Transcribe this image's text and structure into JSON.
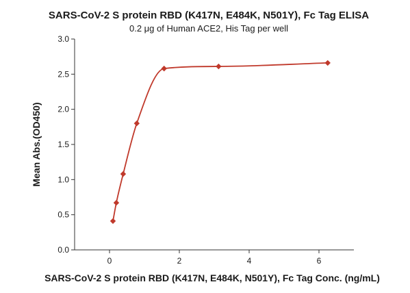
{
  "chart_data": {
    "type": "scatter",
    "title": "SARS-CoV-2 S protein RBD (K417N, E484K, N501Y), Fc Tag ELISA",
    "subtitle": "0.2 μg of Human ACE2, His Tag per well",
    "xlabel": "SARS-CoV-2 S protein RBD (K417N, E484K, N501Y), Fc Tag Conc. (ng/mL)",
    "ylabel": "Mean Abs.(OD450)",
    "xlim": [
      -1,
      7
    ],
    "ylim": [
      0,
      3
    ],
    "x_ticks": [
      0,
      2,
      4,
      6
    ],
    "y_ticks": [
      0.0,
      0.5,
      1.0,
      1.5,
      2.0,
      2.5,
      3.0
    ],
    "x_tick_labels": [
      "0",
      "2",
      "4",
      "6"
    ],
    "y_tick_labels": [
      "0.0",
      "0.5",
      "1.0",
      "1.5",
      "2.0",
      "2.5",
      "3.0"
    ],
    "grid": false,
    "legend": "none",
    "series": [
      {
        "x": [
          0.098,
          0.195,
          0.391,
          0.781,
          1.563,
          3.125,
          6.25
        ],
        "y": [
          0.41,
          0.67,
          1.08,
          1.8,
          2.58,
          2.61,
          2.66
        ],
        "marker": "diamond",
        "color": "#c0392b",
        "fit": "curve"
      }
    ]
  }
}
